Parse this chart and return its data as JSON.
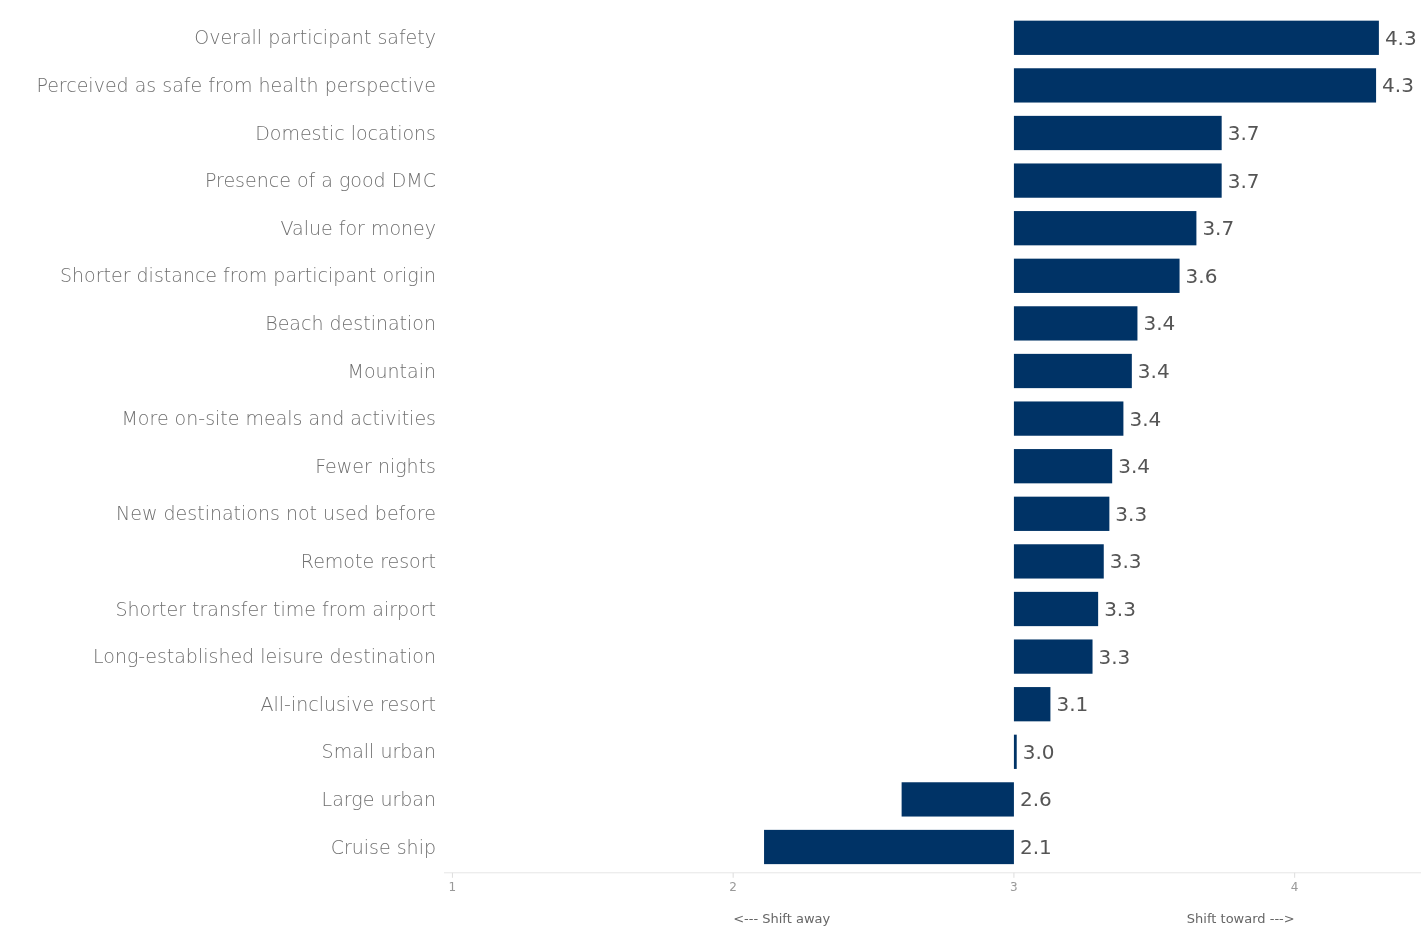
{
  "chart_data": {
    "type": "bar",
    "orientation": "horizontal",
    "categories": [
      "Overall participant safety",
      "Perceived as safe from health perspective",
      "Domestic locations",
      "Presence of a good DMC",
      "Value for money",
      "Shorter distance from participant origin",
      "Beach destination",
      "Mountain",
      "More on-site meals and activities",
      "Fewer nights",
      "New destinations not used before",
      "Remote resort",
      "Shorter transfer time from airport",
      "Long-established leisure destination",
      "All-inclusive resort",
      "Small urban",
      "Large urban",
      "Cruise ship"
    ],
    "base": [
      3,
      3,
      3,
      3,
      3,
      3,
      3,
      3,
      3,
      3,
      3,
      3,
      3,
      3,
      3,
      3,
      3,
      3
    ],
    "values": [
      1.3,
      1.29,
      0.74,
      0.74,
      0.65,
      0.59,
      0.44,
      0.42,
      0.39,
      0.35,
      0.34,
      0.32,
      0.3,
      0.28,
      0.13,
      0.01,
      -0.4,
      -0.89
    ],
    "value_labels": [
      "4.3",
      "4.3",
      "3.7",
      "3.7",
      "3.7",
      "3.6",
      "3.4",
      "3.4",
      "3.4",
      "3.4",
      "3.3",
      "3.3",
      "3.3",
      "3.3",
      "3.1",
      "3.0",
      "2.6",
      "2.1"
    ],
    "color": "#003366",
    "xlim": [
      0.97,
      4.45
    ],
    "xticks": [
      1,
      2,
      3,
      4
    ],
    "annotations": [
      "<--- Shift away",
      "Shift toward --->"
    ]
  }
}
